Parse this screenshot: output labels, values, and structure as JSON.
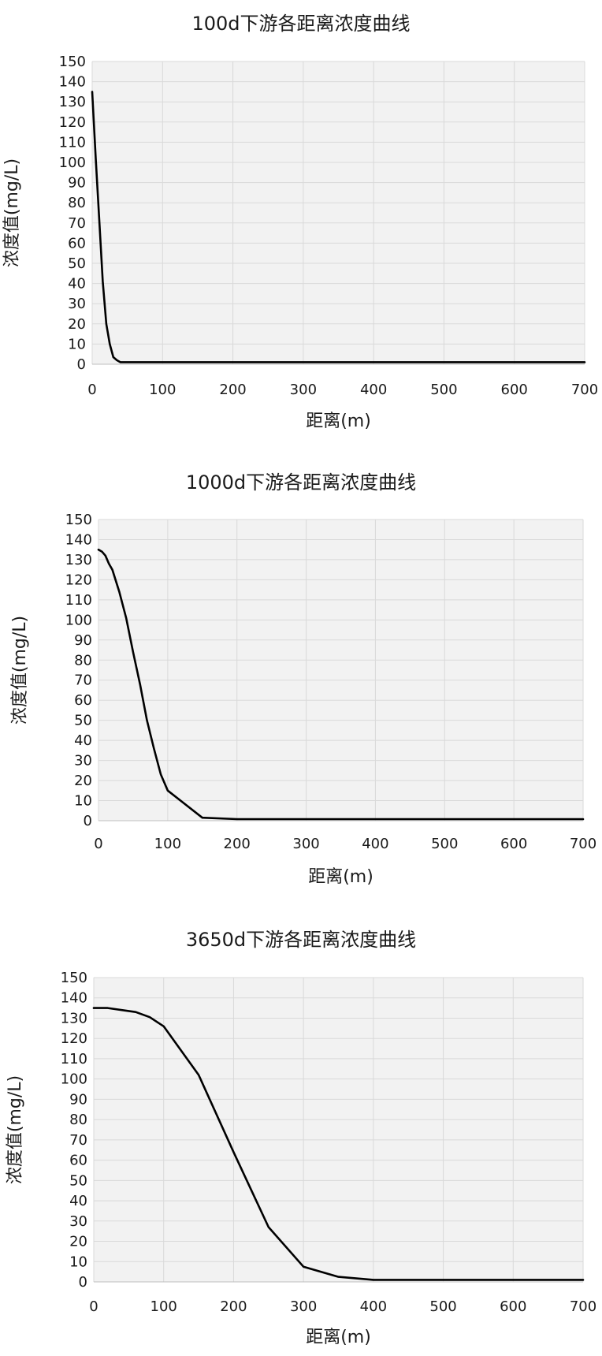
{
  "chart_data": [
    {
      "type": "line",
      "title": "100d下游各距离浓度曲线",
      "xlabel": "距离(m)",
      "ylabel": "浓度值(mg/L)",
      "xlim": [
        0,
        700
      ],
      "ylim": [
        0,
        150
      ],
      "xticks": [
        0,
        100,
        200,
        300,
        400,
        500,
        600,
        700
      ],
      "yticks": [
        0,
        10,
        20,
        30,
        40,
        50,
        60,
        70,
        80,
        90,
        100,
        110,
        120,
        130,
        140,
        150
      ],
      "grid": true,
      "legend": "none",
      "series": [
        {
          "color": "#000000",
          "x": [
            0,
            5,
            10,
            15,
            20,
            25,
            30,
            35,
            40,
            50,
            100,
            200,
            300,
            400,
            500,
            600,
            700
          ],
          "y": [
            135,
            102,
            72,
            41,
            20,
            10,
            3.5,
            2,
            1,
            1,
            1,
            1,
            1,
            1,
            1,
            1,
            1
          ]
        }
      ]
    },
    {
      "type": "line",
      "title": "1000d下游各距离浓度曲线",
      "xlabel": "距离(m)",
      "ylabel": "浓度值(mg/L)",
      "xlim": [
        0,
        700
      ],
      "ylim": [
        0,
        150
      ],
      "xticks": [
        0,
        100,
        200,
        300,
        400,
        500,
        600,
        700
      ],
      "yticks": [
        0,
        10,
        20,
        30,
        40,
        50,
        60,
        70,
        80,
        90,
        100,
        110,
        120,
        130,
        140,
        150
      ],
      "grid": true,
      "legend": "none",
      "series": [
        {
          "color": "#000000",
          "x": [
            0,
            5,
            10,
            15,
            20,
            30,
            40,
            50,
            60,
            70,
            80,
            90,
            100,
            150,
            200,
            300,
            400,
            500,
            600,
            700
          ],
          "y": [
            135,
            134,
            132,
            128,
            125,
            114,
            101,
            84,
            68,
            50,
            36,
            23,
            15,
            1.5,
            0.8,
            0.8,
            0.8,
            0.8,
            0.8,
            0.8
          ]
        }
      ]
    },
    {
      "type": "line",
      "title": "3650d下游各距离浓度曲线",
      "xlabel": "距离(m)",
      "ylabel": "浓度值(mg/L)",
      "xlim": [
        0,
        700
      ],
      "ylim": [
        0,
        150
      ],
      "xticks": [
        0,
        100,
        200,
        300,
        400,
        500,
        600,
        700
      ],
      "yticks": [
        0,
        10,
        20,
        30,
        40,
        50,
        60,
        70,
        80,
        90,
        100,
        110,
        120,
        130,
        140,
        150
      ],
      "grid": true,
      "legend": "none",
      "series": [
        {
          "color": "#000000",
          "x": [
            0,
            20,
            40,
            60,
            80,
            100,
            150,
            200,
            250,
            300,
            350,
            400,
            500,
            600,
            700
          ],
          "y": [
            135,
            135,
            134,
            133,
            130.5,
            126,
            102,
            64,
            27,
            7.5,
            2.5,
            1,
            1,
            1,
            1
          ]
        }
      ]
    }
  ]
}
